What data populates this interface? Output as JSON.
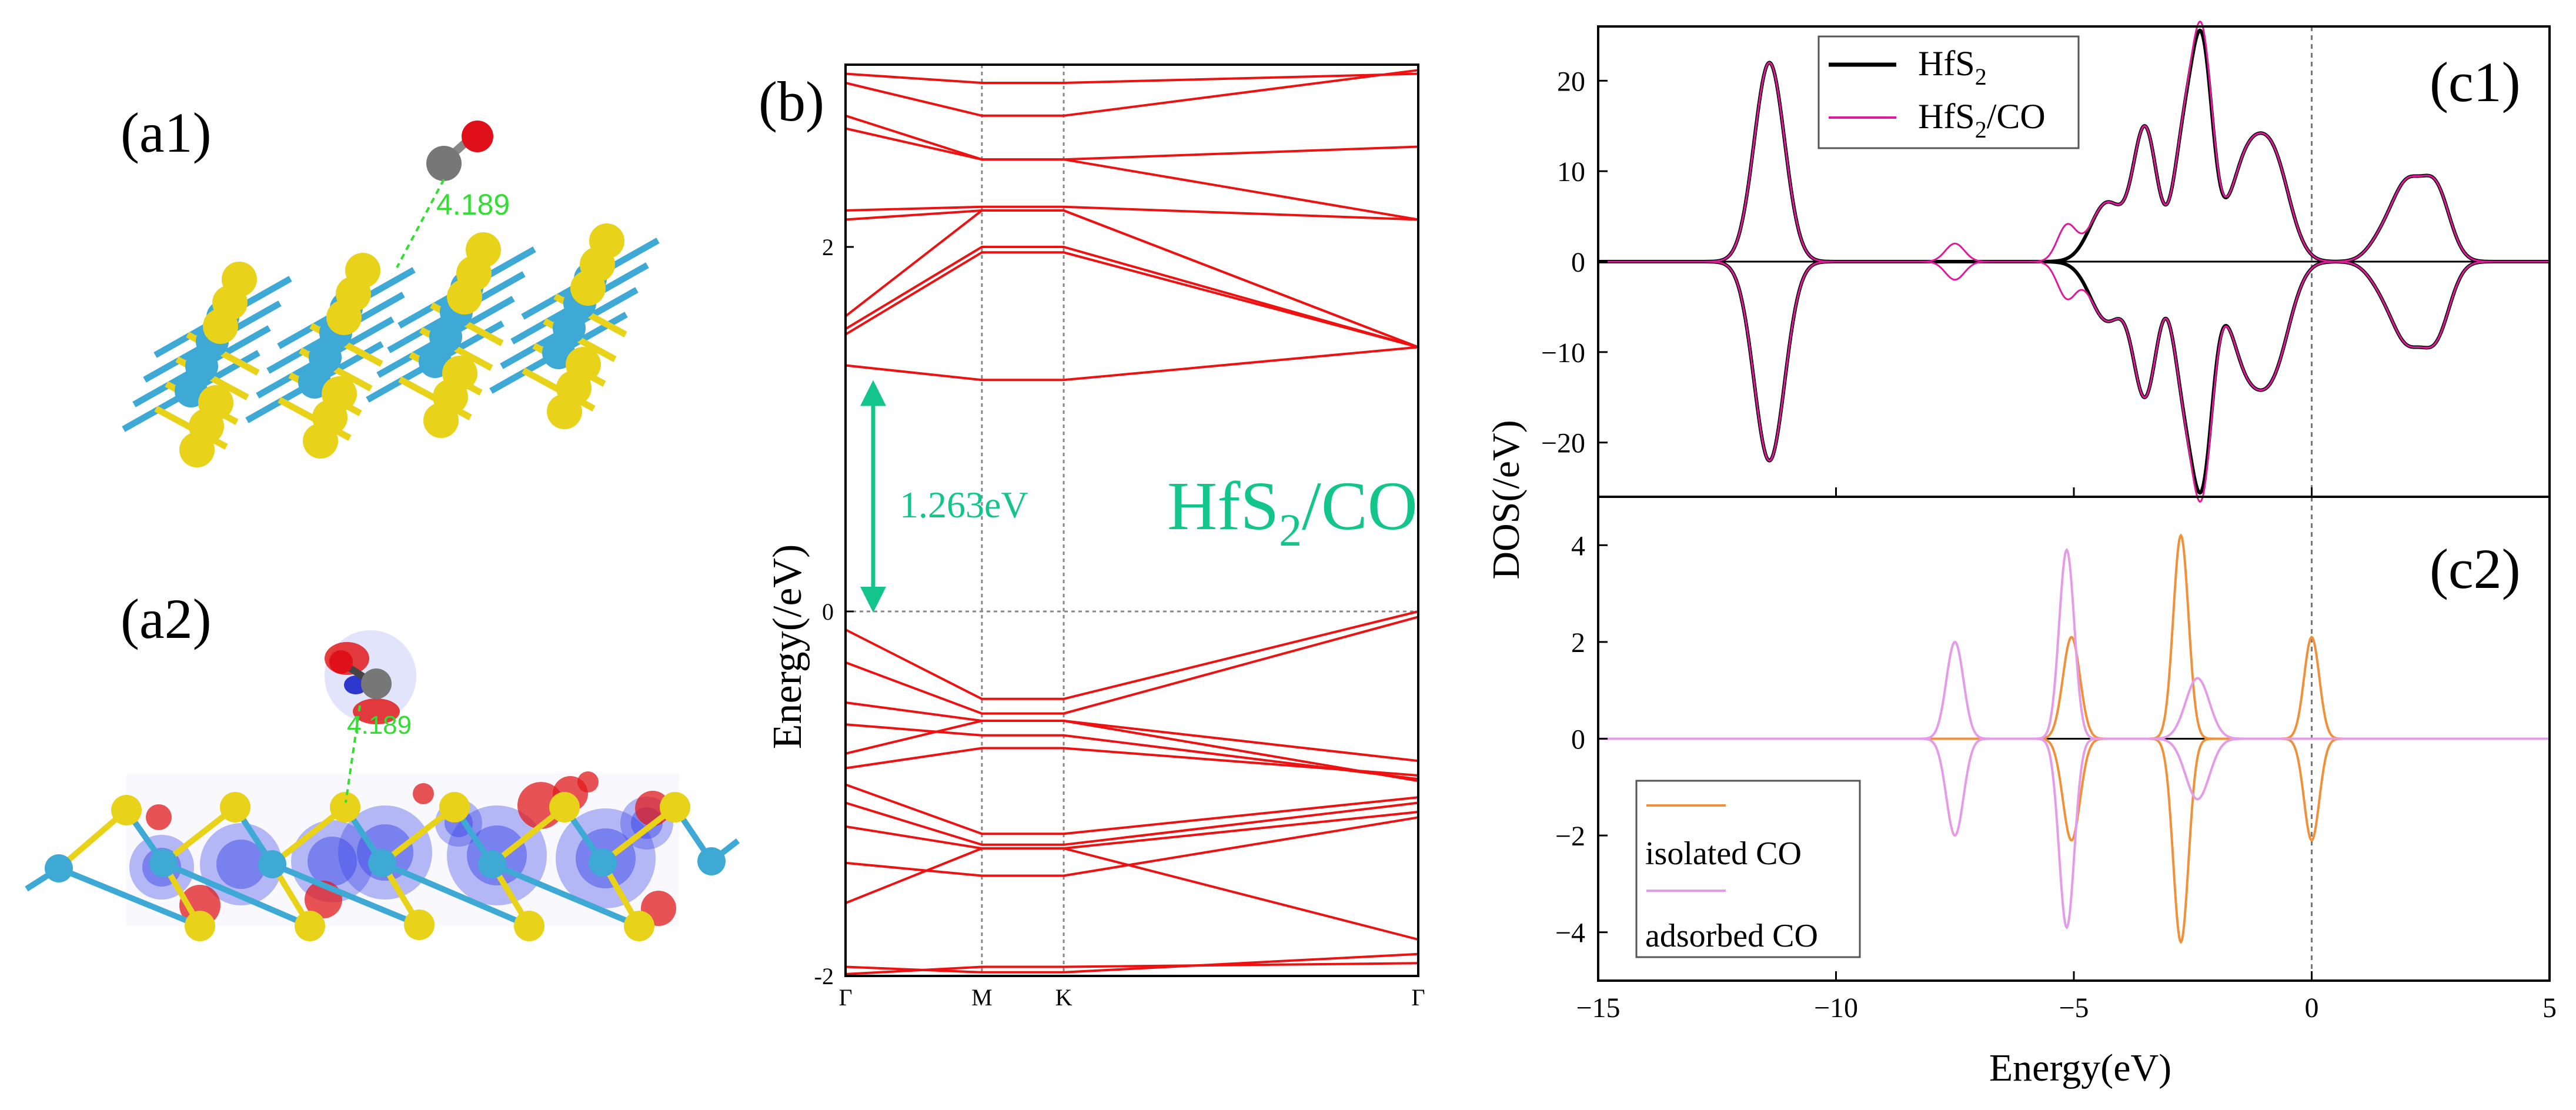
{
  "panels": {
    "a1": {
      "label": "(a1)",
      "distance": "4.189"
    },
    "a2": {
      "label": "(a2)",
      "distance": "4.189"
    }
  },
  "colors": {
    "hf": "#3fa9d6",
    "s": "#e8d21a",
    "c": "#777777",
    "o": "#e0101a",
    "band": "#ee1111",
    "gap": "#13c58a",
    "green_label": "#33dd33",
    "hfs2": "#000000",
    "hfs2co": "#e0199a",
    "isolated": "#f0913a",
    "adsorbed": "#e49be8",
    "charge_pos": "#e21b1b",
    "charge_neg": "#3340e6"
  },
  "chart_data": [
    {
      "id": "b",
      "type": "line",
      "label": "(b)",
      "ylabel": "Energy(/eV)",
      "ylim": [
        -2,
        3.0
      ],
      "yticks": [
        -2,
        0,
        2
      ],
      "kpoints": [
        "Γ",
        "M",
        "K",
        "Γ"
      ],
      "kpos": [
        0,
        1,
        1.6,
        4.2
      ],
      "gap_value": "1.263eV",
      "system": {
        "main": "HfS",
        "sub": "2",
        "tail": "/CO"
      },
      "gap_range": [
        0,
        1.263
      ],
      "bands": [
        [
          2.95,
          2.9,
          2.9,
          2.95
        ],
        [
          2.9,
          2.72,
          2.72,
          2.97
        ],
        [
          2.72,
          2.48,
          2.48,
          2.55
        ],
        [
          2.65,
          2.48,
          2.48,
          2.15
        ],
        [
          2.2,
          2.22,
          2.22,
          2.15
        ],
        [
          2.15,
          2.2,
          2.2,
          1.45
        ],
        [
          1.62,
          2.2,
          2.2,
          1.45
        ],
        [
          1.55,
          2.0,
          2.0,
          1.45
        ],
        [
          1.52,
          1.97,
          1.97,
          1.45
        ],
        [
          1.35,
          1.27,
          1.27,
          1.45
        ],
        [
          -0.1,
          -0.48,
          -0.48,
          0.0
        ],
        [
          -0.28,
          -0.56,
          -0.56,
          -0.03
        ],
        [
          -0.5,
          -0.6,
          -0.6,
          -0.82
        ],
        [
          -0.62,
          -0.68,
          -0.68,
          -0.92
        ],
        [
          -0.78,
          -0.6,
          -0.6,
          -0.93
        ],
        [
          -0.86,
          -0.75,
          -0.75,
          -0.9
        ],
        [
          -0.95,
          -1.22,
          -1.22,
          -1.02
        ],
        [
          -1.05,
          -1.28,
          -1.28,
          -1.05
        ],
        [
          -1.18,
          -1.3,
          -1.3,
          -1.1
        ],
        [
          -1.38,
          -1.45,
          -1.45,
          -1.13
        ],
        [
          -1.6,
          -1.3,
          -1.3,
          -1.8
        ],
        [
          -1.95,
          -1.98,
          -1.98,
          -1.88
        ],
        [
          -1.99,
          -1.95,
          -1.95,
          -1.93
        ]
      ]
    },
    {
      "id": "c1",
      "type": "line",
      "label": "(c1)",
      "xlim": [
        -15,
        5
      ],
      "ylim": [
        -26,
        26
      ],
      "yticks": [
        -20,
        -10,
        0,
        10,
        20
      ],
      "series": [
        {
          "name_main": "HfS",
          "name_sub": "2",
          "name_tail": "",
          "color": "#000000",
          "peaks": [
            [
              -11.4,
              22,
              0.32
            ],
            [
              -3.5,
              14.5,
              0.25
            ],
            [
              -2.7,
              12,
              0.22
            ],
            [
              -2.3,
              22.5,
              0.22
            ],
            [
              -1.4,
              10,
              0.35
            ],
            [
              -0.8,
              10.5,
              0.35
            ],
            [
              -4.3,
              6.5,
              0.35
            ],
            [
              2.0,
              7.5,
              0.3
            ],
            [
              2.6,
              8,
              0.3
            ],
            [
              1.5,
              2.5,
              0.3
            ]
          ]
        },
        {
          "name_main": "HfS",
          "name_sub": "2",
          "name_tail": "/CO",
          "color": "#e0199a",
          "peaks": [
            [
              -11.4,
              22,
              0.32
            ],
            [
              -7.5,
              2,
              0.2
            ],
            [
              -5.15,
              3.8,
              0.2
            ],
            [
              -3.5,
              14.5,
              0.25
            ],
            [
              -2.7,
              12,
              0.22
            ],
            [
              -2.3,
              23.5,
              0.22
            ],
            [
              -1.4,
              10,
              0.35
            ],
            [
              -0.8,
              10.5,
              0.35
            ],
            [
              -4.3,
              6.5,
              0.35
            ],
            [
              2.0,
              7.5,
              0.3
            ],
            [
              2.6,
              8,
              0.3
            ],
            [
              1.5,
              2.5,
              0.3
            ]
          ]
        }
      ]
    },
    {
      "id": "c2",
      "type": "line",
      "label": "(c2)",
      "xlabel": "Energy(eV)",
      "shared_ylabel": "DOS(/eV)",
      "xlim": [
        -15,
        5
      ],
      "ylim": [
        -5,
        5
      ],
      "xticks": [
        -15,
        -10,
        -5,
        0,
        5
      ],
      "yticks": [
        -4,
        -2,
        0,
        2,
        4
      ],
      "series": [
        {
          "name": "isolated CO",
          "color": "#f0913a",
          "peaks": [
            [
              -5.05,
              2.1,
              0.18
            ],
            [
              -2.75,
              4.2,
              0.16
            ],
            [
              0.0,
              2.1,
              0.16
            ]
          ]
        },
        {
          "name": "adsorbed CO",
          "color": "#e49be8",
          "peaks": [
            [
              -7.5,
              2.0,
              0.18
            ],
            [
              -5.15,
              3.9,
              0.16
            ],
            [
              -2.4,
              1.25,
              0.25
            ]
          ]
        }
      ]
    }
  ]
}
